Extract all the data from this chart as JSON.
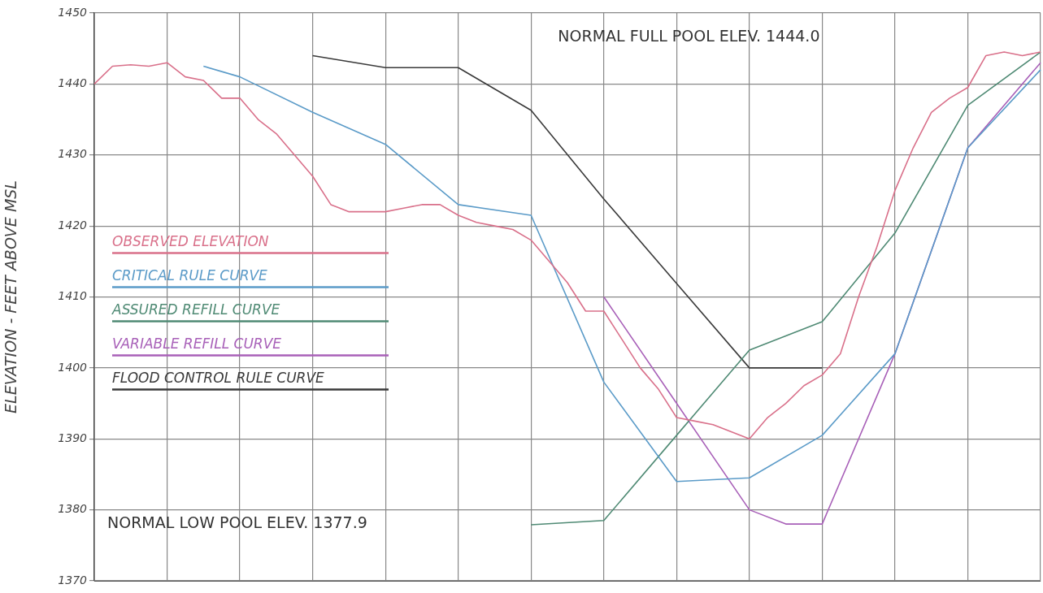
{
  "chart_data": {
    "type": "line",
    "ylabel": "ELEVATION - FEET ABOVE MSL",
    "categories": [
      null,
      null,
      null,
      null,
      null,
      null,
      null,
      null,
      null,
      null,
      null,
      null,
      null,
      null,
      null,
      null,
      null,
      null,
      null,
      null,
      null,
      null,
      null,
      null,
      null,
      null,
      null,
      null,
      null,
      null,
      null,
      null,
      null,
      null,
      null,
      null,
      null,
      null,
      null,
      null,
      null,
      null,
      null,
      null,
      null,
      null,
      null,
      null,
      null,
      null,
      null,
      null,
      null
    ],
    "series": [
      {
        "name": "OBSERVED ELEVATION",
        "color": "#d9708a",
        "values": [
          1440,
          1442.5,
          1442.7,
          1442.5,
          1443,
          1441,
          1440.5,
          1438,
          1438,
          1435,
          1433,
          1430,
          1427,
          1423,
          1422,
          1422,
          1422,
          1422.5,
          1423,
          1423,
          1421.5,
          1420.5,
          1420,
          1419.5,
          1418,
          1415,
          1412,
          1408,
          1408,
          1404,
          1400,
          1397,
          1393,
          1392.5,
          1392,
          1391,
          1390,
          1393,
          1395,
          1397.5,
          1399,
          1402,
          1410,
          1417,
          1425,
          1431,
          1436,
          1438,
          1439.5,
          1444,
          1444.5,
          1444,
          1444.5
        ]
      },
      {
        "name": "CRITICAL RULE CURVE",
        "color": "#5b9bc8",
        "values": [
          null,
          null,
          null,
          null,
          null,
          null,
          1442.5,
          null,
          1441,
          null,
          null,
          null,
          1436,
          null,
          null,
          null,
          1431.5,
          null,
          null,
          null,
          1423,
          null,
          null,
          null,
          1421.5,
          null,
          null,
          null,
          1398,
          null,
          null,
          null,
          1384,
          null,
          null,
          null,
          1384.5,
          null,
          null,
          null,
          1390.5,
          null,
          null,
          null,
          1402,
          null,
          null,
          null,
          1431,
          null,
          null,
          null,
          1442
        ]
      },
      {
        "name": "ASSURED REFILL CURVE",
        "color": "#4f8a74",
        "values": [
          null,
          null,
          null,
          null,
          null,
          null,
          null,
          null,
          null,
          null,
          null,
          null,
          null,
          null,
          null,
          null,
          null,
          null,
          null,
          null,
          null,
          null,
          null,
          null,
          1377.9,
          null,
          null,
          null,
          1378.5,
          null,
          null,
          null,
          1390.5,
          null,
          null,
          null,
          1402.5,
          null,
          null,
          null,
          1406.5,
          null,
          null,
          null,
          1419,
          null,
          null,
          null,
          1437,
          null,
          null,
          null,
          1444.5
        ]
      },
      {
        "name": "VARIABLE REFILL CURVE",
        "color": "#a860b8",
        "values": [
          null,
          null,
          null,
          null,
          null,
          null,
          null,
          null,
          null,
          null,
          null,
          null,
          null,
          null,
          null,
          null,
          null,
          null,
          null,
          null,
          null,
          null,
          null,
          null,
          null,
          null,
          null,
          null,
          1410,
          null,
          null,
          null,
          1395,
          null,
          null,
          null,
          1380,
          null,
          1378,
          null,
          1378,
          null,
          null,
          null,
          1402,
          null,
          null,
          null,
          1431,
          null,
          null,
          null,
          1443
        ]
      },
      {
        "name": "FLOOD CONTROL RULE CURVE",
        "color": "#3a3a3a",
        "values": [
          null,
          null,
          null,
          null,
          null,
          null,
          null,
          null,
          null,
          null,
          null,
          null,
          1444,
          null,
          null,
          null,
          1442.3,
          null,
          null,
          null,
          1442.3,
          null,
          null,
          null,
          1436.3,
          null,
          null,
          null,
          1423.8,
          null,
          null,
          null,
          1411.9,
          null,
          null,
          null,
          1400,
          null,
          null,
          null,
          1400,
          null,
          null,
          null,
          null,
          null,
          null,
          null,
          null,
          null,
          null,
          null,
          null
        ]
      }
    ],
    "ylim": [
      1370,
      1450
    ],
    "yticks": [
      1370,
      1380,
      1390,
      1400,
      1410,
      1420,
      1430,
      1440,
      1450
    ],
    "grid": true,
    "legend": "left",
    "marker": "none",
    "line_style": "solid",
    "tick_labels": "y",
    "annotations": [
      "NORMAL FULL POOL ELEV. 1444.0",
      "NORMAL LOW POOL ELEV. 1377.9"
    ]
  }
}
